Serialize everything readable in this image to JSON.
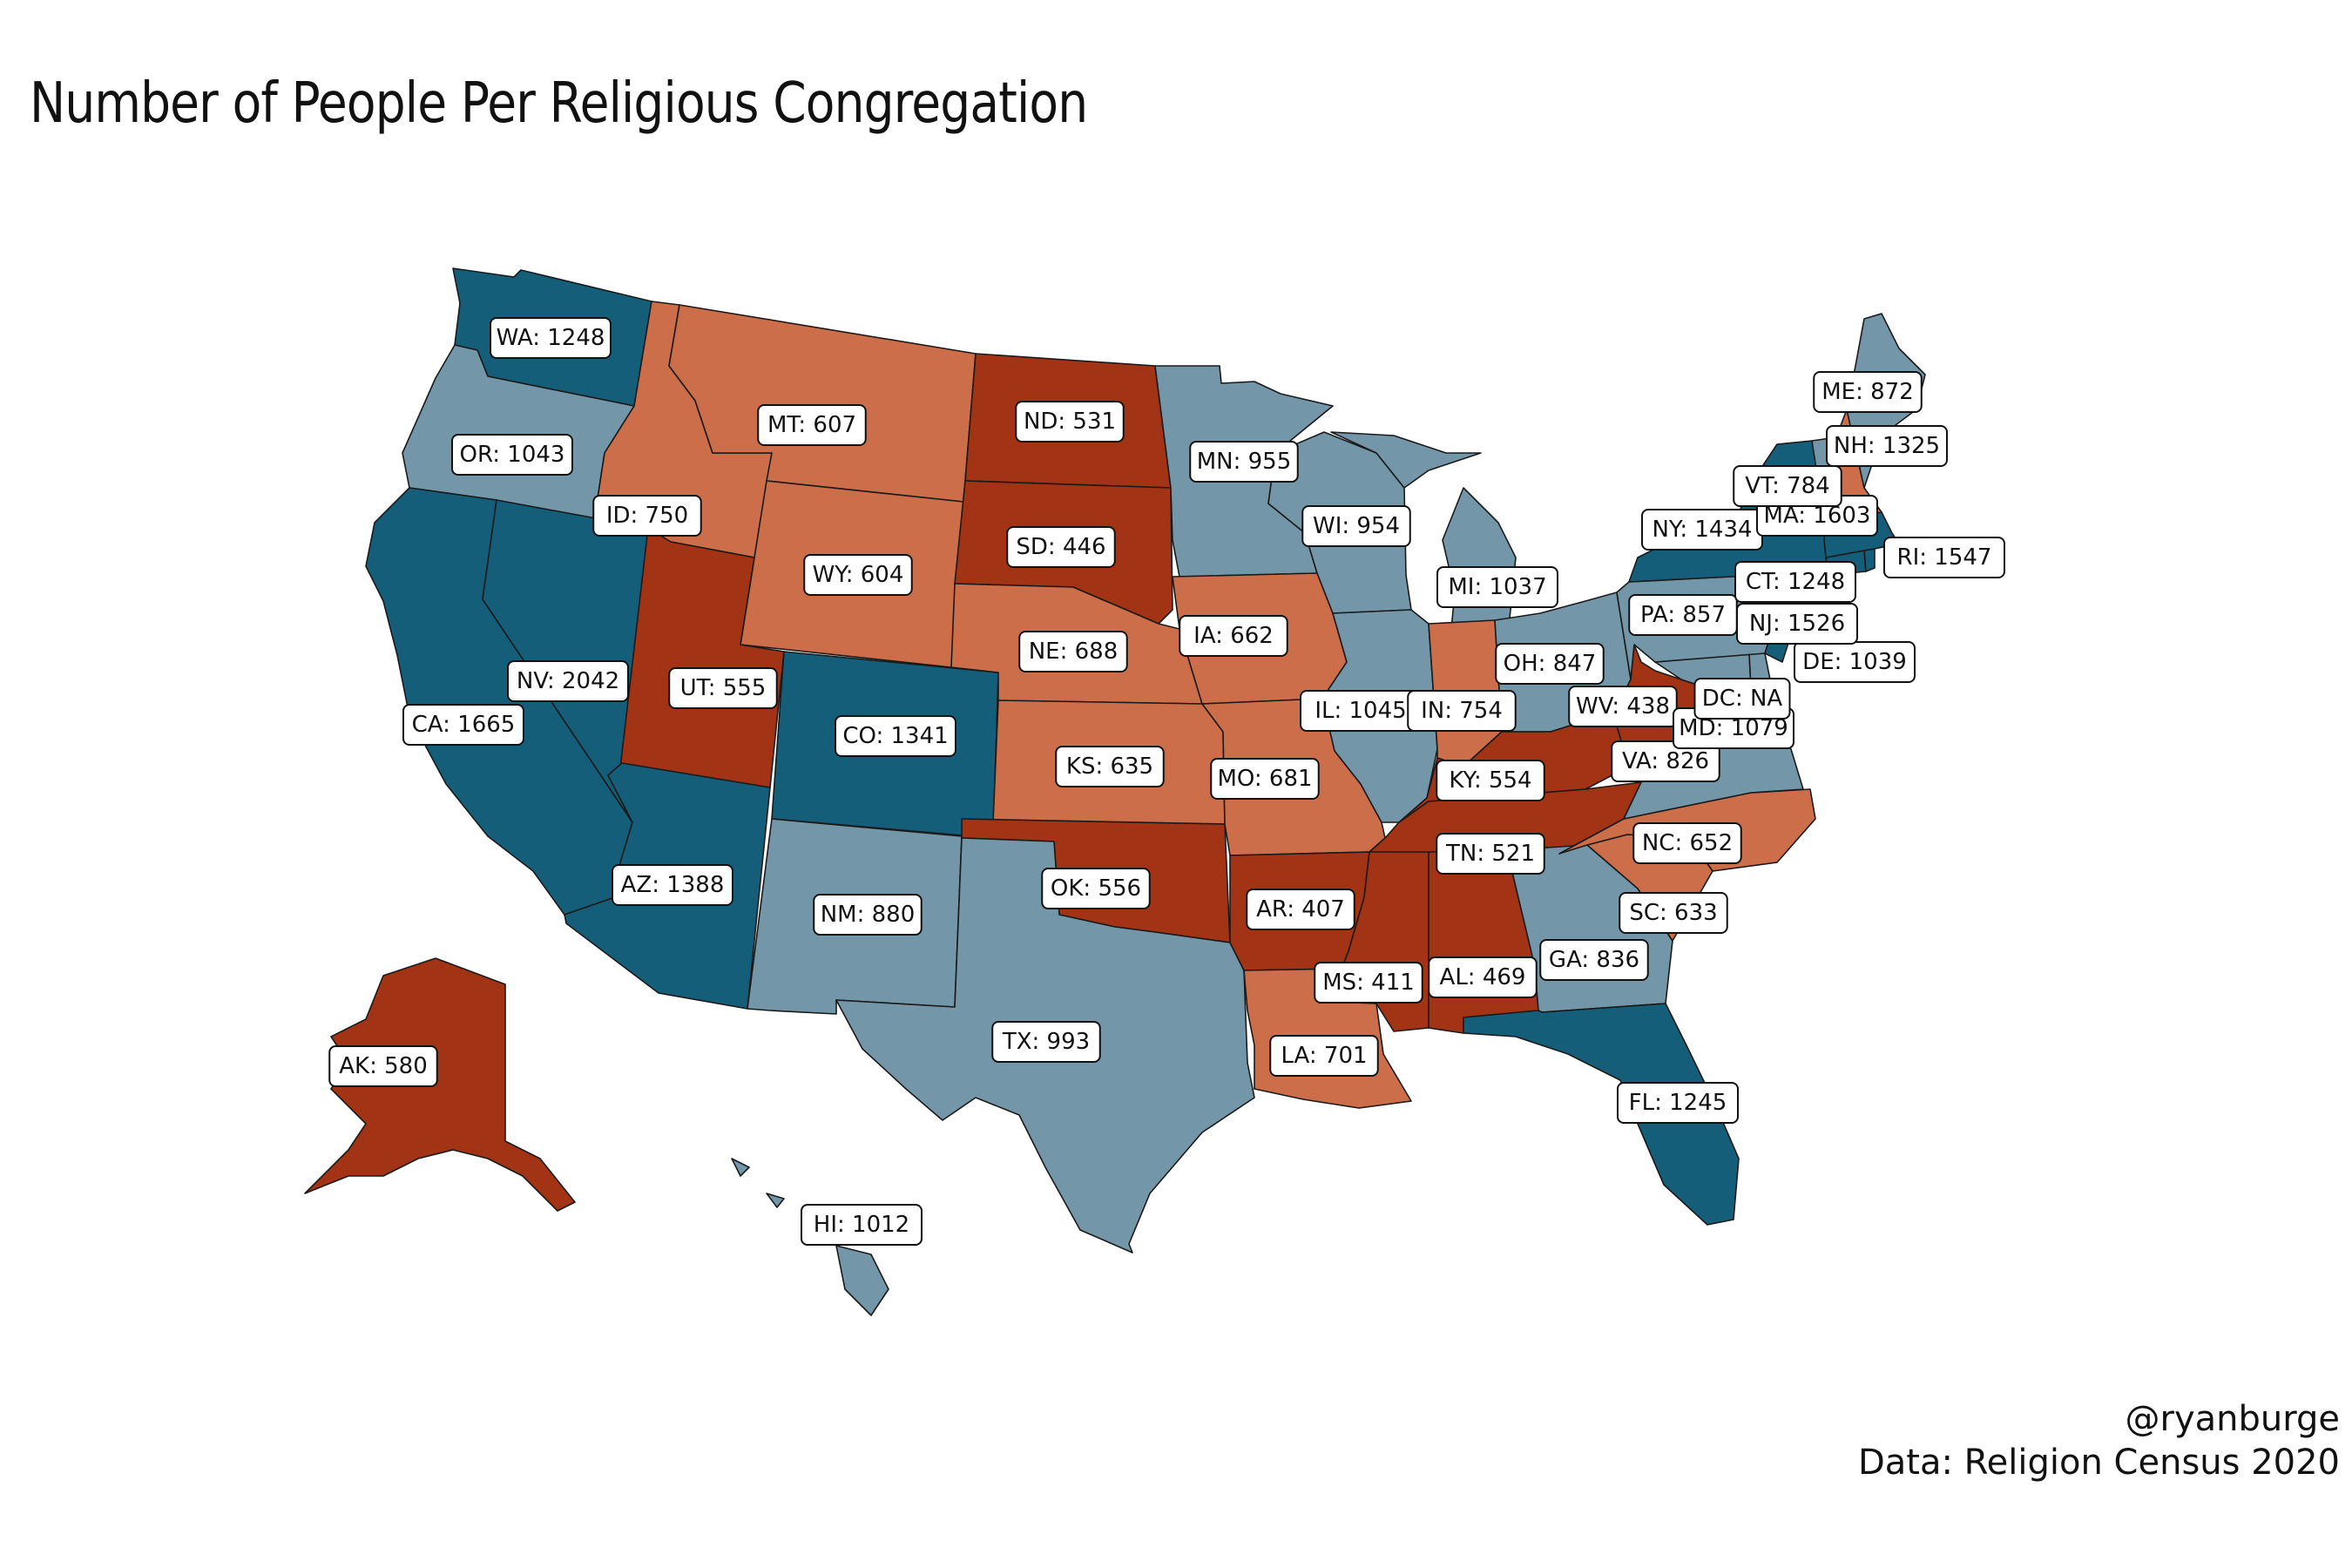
{
  "title": "Number of People Per Religious Congregation",
  "credit": {
    "handle": "@ryanburge",
    "source": "Data: Religion Census 2020"
  },
  "colors": {
    "dark_blue": "#155e7a",
    "light_blue": "#7397a9",
    "light_orange": "#cd6e4a",
    "dark_red": "#a23314"
  },
  "map": {
    "type": "choropleth",
    "region": "United States",
    "states": [
      {
        "abbr": "WA",
        "label": "WA: 1248",
        "value": 1248,
        "color": "dark_blue"
      },
      {
        "abbr": "OR",
        "label": "OR: 1043",
        "value": 1043,
        "color": "light_blue"
      },
      {
        "abbr": "CA",
        "label": "CA: 1665",
        "value": 1665,
        "color": "dark_blue"
      },
      {
        "abbr": "NV",
        "label": "NV: 2042",
        "value": 2042,
        "color": "dark_blue"
      },
      {
        "abbr": "ID",
        "label": "ID: 750",
        "value": 750,
        "color": "light_orange"
      },
      {
        "abbr": "MT",
        "label": "MT: 607",
        "value": 607,
        "color": "light_orange"
      },
      {
        "abbr": "WY",
        "label": "WY: 604",
        "value": 604,
        "color": "light_orange"
      },
      {
        "abbr": "UT",
        "label": "UT: 555",
        "value": 555,
        "color": "dark_red"
      },
      {
        "abbr": "CO",
        "label": "CO: 1341",
        "value": 1341,
        "color": "dark_blue"
      },
      {
        "abbr": "AZ",
        "label": "AZ: 1388",
        "value": 1388,
        "color": "dark_blue"
      },
      {
        "abbr": "NM",
        "label": "NM: 880",
        "value": 880,
        "color": "light_blue"
      },
      {
        "abbr": "ND",
        "label": "ND: 531",
        "value": 531,
        "color": "dark_red"
      },
      {
        "abbr": "SD",
        "label": "SD: 446",
        "value": 446,
        "color": "dark_red"
      },
      {
        "abbr": "NE",
        "label": "NE: 688",
        "value": 688,
        "color": "light_orange"
      },
      {
        "abbr": "KS",
        "label": "KS: 635",
        "value": 635,
        "color": "light_orange"
      },
      {
        "abbr": "OK",
        "label": "OK: 556",
        "value": 556,
        "color": "dark_red"
      },
      {
        "abbr": "TX",
        "label": "TX: 993",
        "value": 993,
        "color": "light_blue"
      },
      {
        "abbr": "MN",
        "label": "MN: 955",
        "value": 955,
        "color": "light_blue"
      },
      {
        "abbr": "IA",
        "label": "IA: 662",
        "value": 662,
        "color": "light_orange"
      },
      {
        "abbr": "MO",
        "label": "MO: 681",
        "value": 681,
        "color": "light_orange"
      },
      {
        "abbr": "AR",
        "label": "AR: 407",
        "value": 407,
        "color": "dark_red"
      },
      {
        "abbr": "LA",
        "label": "LA: 701",
        "value": 701,
        "color": "light_orange"
      },
      {
        "abbr": "WI",
        "label": "WI: 954",
        "value": 954,
        "color": "light_blue"
      },
      {
        "abbr": "IL",
        "label": "IL: 1045",
        "value": 1045,
        "color": "light_blue"
      },
      {
        "abbr": "MI",
        "label": "MI: 1037",
        "value": 1037,
        "color": "light_blue"
      },
      {
        "abbr": "IN",
        "label": "IN: 754",
        "value": 754,
        "color": "light_orange"
      },
      {
        "abbr": "OH",
        "label": "OH: 847",
        "value": 847,
        "color": "light_blue"
      },
      {
        "abbr": "KY",
        "label": "KY: 554",
        "value": 554,
        "color": "dark_red"
      },
      {
        "abbr": "TN",
        "label": "TN: 521",
        "value": 521,
        "color": "dark_red"
      },
      {
        "abbr": "MS",
        "label": "MS: 411",
        "value": 411,
        "color": "dark_red"
      },
      {
        "abbr": "AL",
        "label": "AL: 469",
        "value": 469,
        "color": "dark_red"
      },
      {
        "abbr": "GA",
        "label": "GA: 836",
        "value": 836,
        "color": "light_blue"
      },
      {
        "abbr": "FL",
        "label": "FL: 1245",
        "value": 1245,
        "color": "dark_blue"
      },
      {
        "abbr": "SC",
        "label": "SC: 633",
        "value": 633,
        "color": "light_orange"
      },
      {
        "abbr": "NC",
        "label": "NC: 652",
        "value": 652,
        "color": "light_orange"
      },
      {
        "abbr": "VA",
        "label": "VA: 826",
        "value": 826,
        "color": "light_blue"
      },
      {
        "abbr": "WV",
        "label": "WV: 438",
        "value": 438,
        "color": "dark_red"
      },
      {
        "abbr": "MD",
        "label": "MD: 1079",
        "value": 1079,
        "color": "light_blue"
      },
      {
        "abbr": "DC",
        "label": "DC: NA",
        "value": null,
        "color": "light_blue"
      },
      {
        "abbr": "DE",
        "label": "DE: 1039",
        "value": 1039,
        "color": "light_blue"
      },
      {
        "abbr": "PA",
        "label": "PA: 857",
        "value": 857,
        "color": "light_blue"
      },
      {
        "abbr": "NJ",
        "label": "NJ: 1526",
        "value": 1526,
        "color": "dark_blue"
      },
      {
        "abbr": "NY",
        "label": "NY: 1434",
        "value": 1434,
        "color": "dark_blue"
      },
      {
        "abbr": "CT",
        "label": "CT: 1248",
        "value": 1248,
        "color": "dark_blue"
      },
      {
        "abbr": "RI",
        "label": "RI: 1547",
        "value": 1547,
        "color": "dark_blue"
      },
      {
        "abbr": "MA",
        "label": "MA: 1603",
        "value": 1603,
        "color": "dark_blue"
      },
      {
        "abbr": "VT",
        "label": "VT: 784",
        "value": 784,
        "color": "light_blue"
      },
      {
        "abbr": "NH",
        "label": "NH: 1325",
        "value": 1325,
        "color": "light_orange"
      },
      {
        "abbr": "ME",
        "label": "ME: 872",
        "value": 872,
        "color": "light_blue"
      },
      {
        "abbr": "AK",
        "label": "AK: 580",
        "value": 580,
        "color": "dark_red"
      },
      {
        "abbr": "HI",
        "label": "HI: 1012",
        "value": 1012,
        "color": "light_blue"
      }
    ]
  }
}
